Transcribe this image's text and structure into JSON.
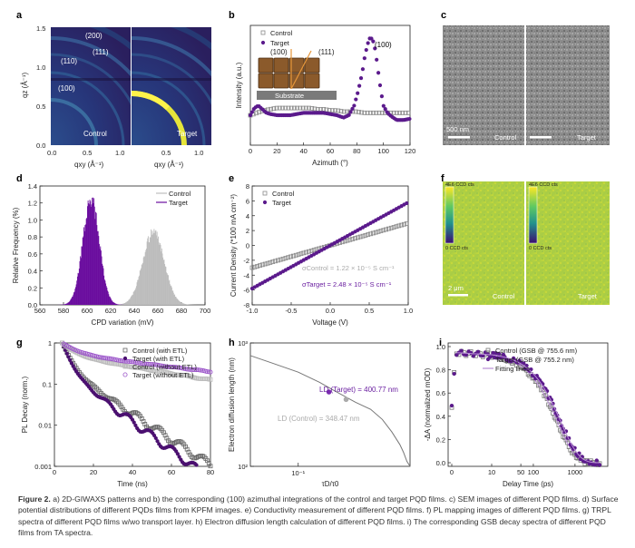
{
  "figure": {
    "panels": {
      "a": {
        "letter": "a",
        "left_label": "Control",
        "right_label": "Target",
        "ring_labels": [
          "(200)",
          "(111)",
          "(110)",
          "(100)"
        ],
        "ylabel": "qz (Å⁻¹)",
        "xlabel": "qxy (Å⁻¹)",
        "yticks": [
          "0.0",
          "0.5",
          "1.0",
          "1.5"
        ],
        "xticks_left": [
          "0.0",
          "0.5",
          "1.0"
        ],
        "xticks_right": [
          "0.5",
          "1.0"
        ]
      },
      "b": {
        "letter": "b",
        "inset_labels": [
          "(100)",
          "(111)",
          "Substrate"
        ],
        "peak_label": "(100)"
      },
      "c": {
        "letter": "c",
        "scalebar": "500 nm",
        "left_label": "Control",
        "right_label": "Target"
      },
      "d": {
        "letter": "d"
      },
      "e": {
        "letter": "e",
        "sigma_control": "σControl = 1.22 × 10⁻⁵ S cm⁻¹",
        "sigma_target": "σTarget = 2.48 × 10⁻⁵ S cm⁻¹"
      },
      "f": {
        "letter": "f",
        "colorbar_top": "4E6 CCD cts",
        "colorbar_bottom": "0 CCD cts",
        "scalebar": "2 μm",
        "left_label": "Control",
        "right_label": "Target"
      },
      "g": {
        "letter": "g"
      },
      "h": {
        "letter": "h",
        "label_target": "LD (Target) = 400.77 nm",
        "label_control": "LD (Control) = 348.47 nm"
      },
      "i": {
        "letter": "i"
      }
    },
    "caption": {
      "lead": "Figure 2.",
      "text": " a) 2D-GIWAXS patterns and b) the corresponding (100) azimuthal integrations of the control and target PQD films. c) SEM images of different PQD films. d) Surface potential distributions of different PQDs films from KPFM images. e) Conductivity measurement of different PQD films. f) PL mapping images of different PQD films. g) TRPL spectra of different PQD films w/wo transport layer. h) Electron diffusion length calculation of different PQD films. i) The corresponding GSB decay spectra of different PQD films from TA spectra."
    }
  },
  "chart_data": [
    {
      "panel": "b",
      "type": "scatter",
      "xlabel": "Azimuth (°)",
      "ylabel": "Intensity (a.u.)",
      "xlim": [
        0,
        120
      ],
      "xticks": [
        0,
        20,
        40,
        60,
        80,
        100,
        120
      ],
      "ylim": [
        0,
        1
      ],
      "legend": "top-left",
      "series": [
        {
          "name": "Control",
          "color": "#8a8a8a",
          "marker": "open-square",
          "x": [
            0,
            5,
            10,
            15,
            20,
            25,
            30,
            35,
            40,
            45,
            50,
            55,
            60,
            65,
            70,
            75,
            80,
            85,
            90,
            95,
            100,
            105,
            110,
            115,
            120
          ],
          "y": [
            0.25,
            0.27,
            0.29,
            0.3,
            0.31,
            0.31,
            0.31,
            0.31,
            0.31,
            0.31,
            0.3,
            0.3,
            0.29,
            0.29,
            0.28,
            0.28,
            0.28,
            0.27,
            0.27,
            0.27,
            0.27,
            0.27,
            0.27,
            0.27,
            0.27
          ]
        },
        {
          "name": "Target",
          "color": "#5b1a8c",
          "marker": "filled-circle",
          "x": [
            0,
            3,
            6,
            9,
            12,
            15,
            20,
            25,
            30,
            35,
            40,
            45,
            50,
            55,
            60,
            65,
            70,
            74,
            78,
            81,
            84,
            86,
            88,
            90,
            92,
            94,
            96,
            98,
            100,
            103,
            106,
            110,
            115,
            120
          ],
          "y": [
            0.25,
            0.31,
            0.33,
            0.3,
            0.27,
            0.26,
            0.25,
            0.25,
            0.25,
            0.26,
            0.27,
            0.27,
            0.27,
            0.27,
            0.26,
            0.25,
            0.23,
            0.25,
            0.33,
            0.45,
            0.6,
            0.74,
            0.84,
            0.9,
            0.88,
            0.79,
            0.62,
            0.46,
            0.33,
            0.27,
            0.24,
            0.21,
            0.21,
            0.22
          ]
        }
      ]
    },
    {
      "panel": "d",
      "type": "histogram",
      "xlabel": "CPD variation (mV)",
      "ylabel": "Relative Frequency (%)",
      "xlim": [
        560,
        700
      ],
      "xticks": [
        560,
        580,
        600,
        620,
        640,
        660,
        680,
        700
      ],
      "ylim": [
        0,
        1.4
      ],
      "yticks": [
        0.0,
        0.2,
        0.4,
        0.6,
        0.8,
        1.0,
        1.2,
        1.4
      ],
      "legend": "top-right",
      "series": [
        {
          "name": "Control",
          "color": "#bdbdbd",
          "center": 656,
          "sigma": 9,
          "peak": 0.92
        },
        {
          "name": "Target",
          "color": "#6a0d9e",
          "center": 603,
          "sigma": 7,
          "peak": 1.34
        }
      ]
    },
    {
      "panel": "e",
      "type": "scatter",
      "xlabel": "Voltage (V)",
      "ylabel": "Current Density (*100 mA cm⁻²)",
      "xlim": [
        -1.0,
        1.0
      ],
      "xticks": [
        -1.0,
        -0.5,
        0.0,
        0.5,
        1.0
      ],
      "ylim": [
        -8,
        8
      ],
      "yticks": [
        -8,
        -6,
        -4,
        -2,
        0,
        2,
        4,
        6,
        8
      ],
      "legend": "top-left",
      "series": [
        {
          "name": "Control",
          "color": "#8a8a8a",
          "marker": "open-square",
          "x": [
            -1.0,
            1.0
          ],
          "y": [
            -3.0,
            3.0
          ]
        },
        {
          "name": "Target",
          "color": "#5b1a8c",
          "marker": "filled-circle",
          "x": [
            -1.0,
            1.0
          ],
          "y": [
            -5.8,
            5.8
          ]
        }
      ]
    },
    {
      "panel": "g",
      "type": "scatter",
      "xlabel": "Time (ns)",
      "ylabel": "PL Decay (norm.)",
      "xlim": [
        0,
        80
      ],
      "xticks": [
        0,
        20,
        40,
        60,
        80
      ],
      "yscale": "log",
      "ylim": [
        0.001,
        1
      ],
      "yticks": [
        0.001,
        0.01,
        0.1,
        1
      ],
      "legend": "top-right",
      "series": [
        {
          "name": "Control (with ETL)",
          "color": "#666666",
          "marker": "open-square",
          "t0": 4,
          "a1": 0.75,
          "tau1": 3.5,
          "a2": 0.25,
          "tau2": 14
        },
        {
          "name": "Target (with ETL)",
          "color": "#4b1070",
          "marker": "filled-circle",
          "t0": 4,
          "a1": 0.78,
          "tau1": 3.2,
          "a2": 0.22,
          "tau2": 12.5
        },
        {
          "name": "Control (without ETL)",
          "color": "#bbbbbb",
          "marker": "open-square",
          "t0": 4,
          "a1": 0.5,
          "tau1": 6,
          "a2": 0.5,
          "tau2": 55
        },
        {
          "name": "Target (without ETL)",
          "color": "#9b55c9",
          "marker": "open-circle",
          "t0": 4,
          "a1": 0.45,
          "tau1": 7,
          "a2": 0.55,
          "tau2": 75
        }
      ]
    },
    {
      "panel": "h",
      "type": "line",
      "xlabel": "τD/τ0",
      "ylabel": "Electron diffusion length (nm)",
      "xscale": "log",
      "yscale": "log",
      "xlim": [
        0.04,
        0.85
      ],
      "ylim": [
        100,
        1000
      ],
      "xtick_labels": [
        {
          "value": 0.1,
          "label": "10⁻¹"
        }
      ],
      "ytick_labels": [
        {
          "value": 100,
          "label": "10²"
        },
        {
          "value": 1000,
          "label": "10³"
        }
      ],
      "curve": {
        "name": "LD",
        "color": "#777777",
        "x": [
          0.04,
          0.06,
          0.1,
          0.15,
          0.2,
          0.3,
          0.4,
          0.5,
          0.6,
          0.7,
          0.75,
          0.8,
          0.85
        ],
        "y": [
          790,
          690,
          580,
          480,
          410,
          330,
          290,
          240,
          190,
          150,
          130,
          110,
          100
        ]
      },
      "points": [
        {
          "name": "Target",
          "color": "#7a2bb0",
          "x": 0.18,
          "y": 400.77
        },
        {
          "name": "Control",
          "color": "#aaaaaa",
          "x": 0.25,
          "y": 348.47
        }
      ]
    },
    {
      "panel": "i",
      "type": "scatter",
      "xlabel": "Delay Time (ps)",
      "ylabel": "-ΔA (normalized mOD)",
      "xscale": "linear-log",
      "xtick_labels": [
        "0",
        "10",
        "50",
        "100",
        "1000"
      ],
      "ylim": [
        0.0,
        1.0
      ],
      "yticks": [
        0.0,
        0.2,
        0.4,
        0.6,
        0.8,
        1.0
      ],
      "legend": "top-right",
      "series": [
        {
          "name": "Control (GSB @ 755.6 nm)",
          "color": "#777777",
          "marker": "open-square"
        },
        {
          "name": "Target (GSB @ 755.2 nm)",
          "color": "#5b1a8c",
          "marker": "filled-circle"
        },
        {
          "name": "Fitting lines",
          "color": "#b98ed6",
          "marker": "line"
        }
      ]
    }
  ]
}
